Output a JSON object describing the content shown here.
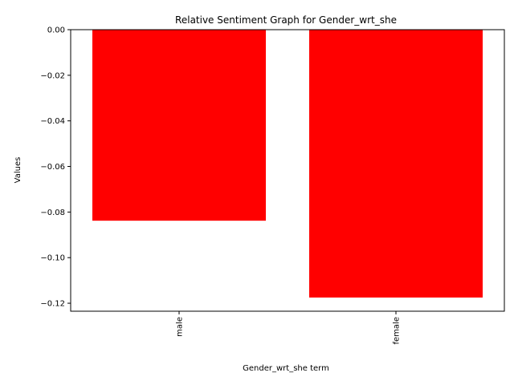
{
  "chart_data": {
    "type": "bar",
    "title": "Relative Sentiment Graph for Gender_wrt_she",
    "xlabel": "Gender_wrt_she term",
    "ylabel": "Values",
    "categories": [
      "male",
      "female"
    ],
    "values": [
      -0.0838,
      -0.1175
    ],
    "ylim": [
      -0.1235,
      0.0
    ],
    "yticks": [
      0.0,
      -0.02,
      -0.04,
      -0.06,
      -0.08,
      -0.1,
      -0.12
    ],
    "ytick_labels": [
      "0.00",
      "−0.02",
      "−0.04",
      "−0.06",
      "−0.08",
      "−0.10",
      "−0.12"
    ],
    "bar_color": "#ff0000",
    "grid": false,
    "legend": "none"
  }
}
